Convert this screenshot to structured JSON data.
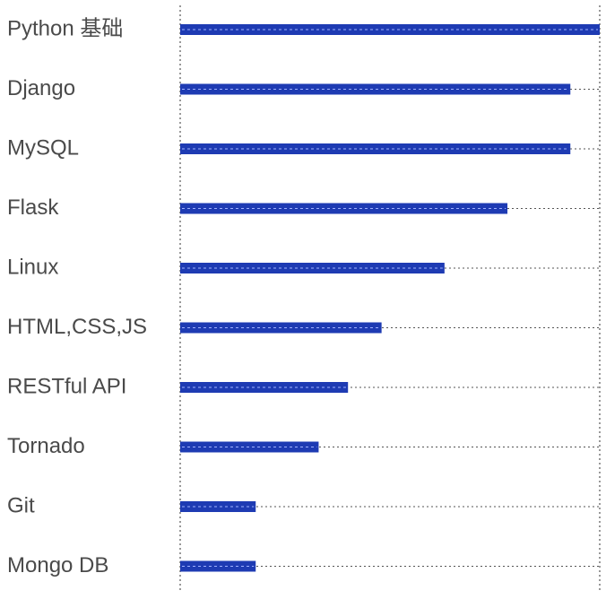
{
  "chart_data": {
    "type": "bar",
    "orientation": "horizontal",
    "categories": [
      "Python 基础",
      "Django",
      "MySQL",
      "Flask",
      "Linux",
      "HTML,CSS,JS",
      "RESTful API",
      "Tornado",
      "Git",
      "Mongo DB"
    ],
    "values": [
      100,
      93,
      93,
      78,
      63,
      48,
      40,
      33,
      18,
      18
    ],
    "xlim": [
      0,
      100
    ],
    "grid": true,
    "legend": "none",
    "bar_color": "#1e3bb3",
    "grid_color": "#555555"
  }
}
